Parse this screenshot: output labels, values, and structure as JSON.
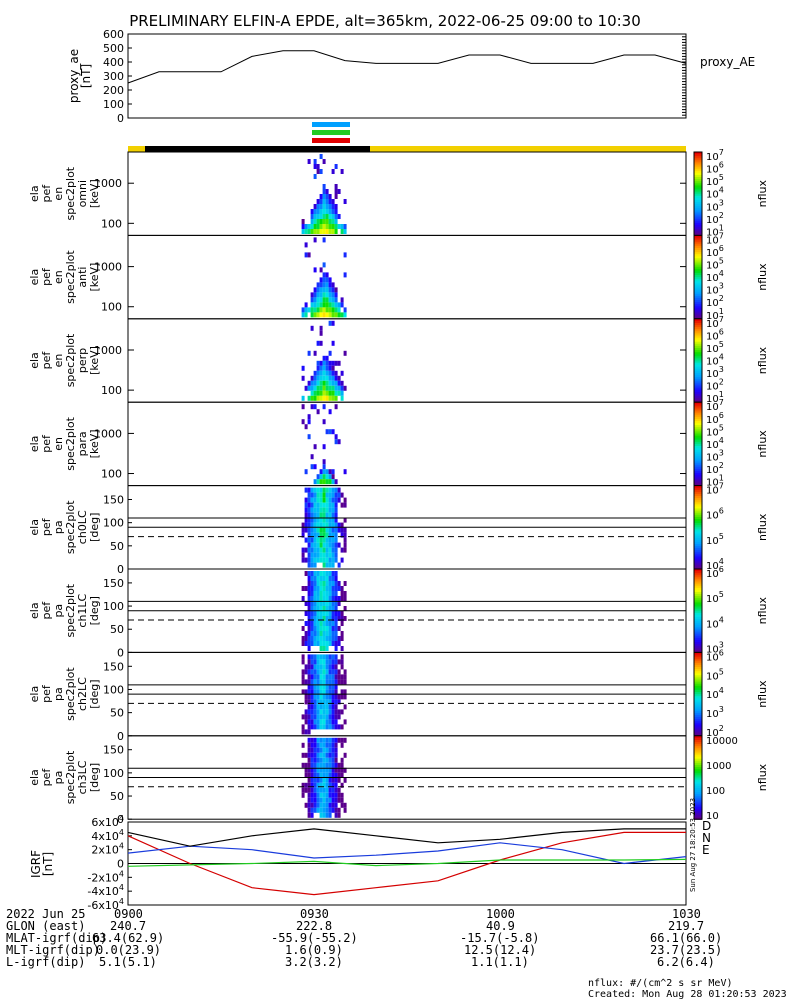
{
  "title": "PRELIMINARY ELFIN-A EPDE, alt=365km, 2022-06-25 09:00 to 10:30",
  "top_panel": {
    "ylabel_lines": [
      "proxy_ae",
      "[nT]"
    ],
    "yticks": [
      "600",
      "500",
      "400",
      "300",
      "200",
      "100",
      "0"
    ],
    "legend": "proxy_AE"
  },
  "spec_panels": [
    {
      "ylabel_lines": [
        "ela",
        "pef",
        "en",
        "spec2plot",
        "omni",
        "[keV]"
      ],
      "yticks": [
        "1000",
        "100"
      ],
      "colorbar": {
        "ticks": [
          "10",
          "10",
          "10",
          "10",
          "10",
          "10",
          "10"
        ],
        "exps": [
          "7",
          "6",
          "5",
          "4",
          "3",
          "2",
          "1"
        ],
        "label": "nflux"
      }
    },
    {
      "ylabel_lines": [
        "ela",
        "pef",
        "en",
        "spec2plot",
        "anti",
        "[keV]"
      ],
      "yticks": [
        "1000",
        "100"
      ],
      "colorbar": {
        "ticks": [
          "10",
          "10",
          "10",
          "10",
          "10",
          "10",
          "10"
        ],
        "exps": [
          "7",
          "6",
          "5",
          "4",
          "3",
          "2",
          "1"
        ],
        "label": "nflux"
      }
    },
    {
      "ylabel_lines": [
        "ela",
        "pef",
        "en",
        "spec2plot",
        "perp",
        "[keV]"
      ],
      "yticks": [
        "1000",
        "100"
      ],
      "colorbar": {
        "ticks": [
          "10",
          "10",
          "10",
          "10",
          "10",
          "10",
          "10"
        ],
        "exps": [
          "7",
          "6",
          "5",
          "4",
          "3",
          "2",
          "1"
        ],
        "label": "nflux"
      }
    },
    {
      "ylabel_lines": [
        "ela",
        "pef",
        "en",
        "spec2plot",
        "para",
        "[keV]"
      ],
      "yticks": [
        "1000",
        "100"
      ],
      "colorbar": {
        "ticks": [
          "10",
          "10",
          "10",
          "10",
          "10",
          "10",
          "10"
        ],
        "exps": [
          "7",
          "6",
          "5",
          "4",
          "3",
          "2",
          "1"
        ],
        "label": "nflux"
      }
    },
    {
      "ylabel_lines": [
        "ela",
        "pef",
        "pa",
        "spec2plot",
        "ch0LC",
        "[deg]"
      ],
      "yticks": [
        "150",
        "100",
        "50",
        "0"
      ],
      "colorbar": {
        "ticks": [
          "10",
          "10",
          "10",
          "10"
        ],
        "exps": [
          "7",
          "6",
          "5",
          "4"
        ],
        "label": "nflux"
      }
    },
    {
      "ylabel_lines": [
        "ela",
        "pef",
        "pa",
        "spec2plot",
        "ch1LC",
        "[deg]"
      ],
      "yticks": [
        "150",
        "100",
        "50",
        "0"
      ],
      "colorbar": {
        "ticks": [
          "10",
          "10",
          "10",
          "10"
        ],
        "exps": [
          "6",
          "5",
          "4",
          "3"
        ],
        "label": "nflux"
      }
    },
    {
      "ylabel_lines": [
        "ela",
        "pef",
        "pa",
        "spec2plot",
        "ch2LC",
        "[deg]"
      ],
      "yticks": [
        "150",
        "100",
        "50",
        "0"
      ],
      "colorbar": {
        "ticks": [
          "10",
          "10",
          "10",
          "10",
          "10"
        ],
        "exps": [
          "6",
          "5",
          "4",
          "3",
          "2"
        ],
        "label": "nflux"
      }
    },
    {
      "ylabel_lines": [
        "ela",
        "pef",
        "pa",
        "spec2plot",
        "ch3LC",
        "[deg]"
      ],
      "yticks": [
        "150",
        "100",
        "50",
        "0"
      ],
      "colorbar": {
        "ticks": [
          "10000",
          "1000",
          "100",
          "10"
        ],
        "exps": [
          "",
          "",
          "",
          ""
        ],
        "label": "nflux"
      }
    }
  ],
  "igrf_panel": {
    "ylabel_lines": [
      "IGRF",
      "[nT]"
    ],
    "yticks": [
      "6x10",
      "4x10",
      "2x10",
      "0",
      "-2x10",
      "-4x10",
      "-6x10"
    ],
    "ytick_exps": [
      "4",
      "4",
      "4",
      "",
      "4",
      "4",
      "4"
    ],
    "legend": [
      "D",
      "N",
      "E"
    ],
    "side_note": "Sun Aug 27 18:20:53 2023"
  },
  "footer": {
    "rows": [
      {
        "label": "2022 Jun 25",
        "values": [
          "0900",
          "0930",
          "1000",
          "1030"
        ]
      },
      {
        "label": "GLON (east)",
        "values": [
          "240.7",
          "222.8",
          "40.9",
          "219.7"
        ]
      },
      {
        "label": "MLAT-igrf(dip)",
        "values": [
          "63.4(62.9)",
          "-55.9(-55.2)",
          "-15.7(-5.8)",
          "66.1(66.0)"
        ]
      },
      {
        "label": "MLT-igrf(dip)",
        "values": [
          "0.0(23.9)",
          "1.6(0.9)",
          "12.5(12.4)",
          "23.7(23.5)"
        ]
      },
      {
        "label": "L-igrf(dip)",
        "values": [
          "5.1(5.1)",
          "3.2(3.2)",
          "1.1(1.1)",
          "6.2(6.4)"
        ]
      }
    ],
    "units_note": "nflux: #/(cm^2 s sr MeV)",
    "created": "Created: Mon Aug 28 01:20:53 2023"
  },
  "colors": {
    "ae_line": "#000000",
    "igrf_d": "#d40000",
    "igrf_n": "#1a3cdc",
    "igrf_e": "#22cc22",
    "igrf_total": "#000000",
    "orbit_sunlit": "#f2d000",
    "orbit_shadow": "#000000",
    "science_bars": [
      "#00a0ff",
      "#22cc22",
      "#e00000"
    ]
  },
  "chart_data": [
    {
      "type": "line",
      "name": "proxy_ae",
      "x_minutes": [
        0,
        5,
        10,
        15,
        20,
        25,
        30,
        35,
        40,
        45,
        50,
        55,
        60,
        65,
        70,
        75,
        80,
        85,
        90
      ],
      "y": [
        250,
        330,
        330,
        330,
        440,
        480,
        480,
        410,
        390,
        390,
        390,
        450,
        450,
        390,
        390,
        390,
        450,
        450,
        390
      ],
      "ylim": [
        0,
        600
      ],
      "xlim": [
        0,
        90
      ]
    },
    {
      "type": "heatmap",
      "name": "energy_spectrograms",
      "panels": [
        "omni",
        "anti",
        "perp",
        "para"
      ],
      "active_window_minutes": [
        28,
        35
      ],
      "peak_minute": 31.5,
      "ylim_keV": [
        50,
        6000
      ],
      "log_y": true
    },
    {
      "type": "heatmap",
      "name": "pitch_angle_spectrograms",
      "panels": [
        "ch0LC",
        "ch1LC",
        "ch2LC",
        "ch3LC"
      ],
      "active_window_minutes": [
        28,
        35
      ],
      "ylim_deg": [
        0,
        180
      ],
      "reference_lines_deg": [
        110,
        90,
        70
      ]
    },
    {
      "type": "line",
      "name": "IGRF",
      "x_minutes": [
        0,
        10,
        20,
        30,
        40,
        50,
        60,
        70,
        80,
        90
      ],
      "ylim": [
        -60000,
        60000
      ],
      "series": [
        {
          "name": "D",
          "values": [
            40000,
            0,
            -35000,
            -45000,
            -35000,
            -25000,
            5000,
            30000,
            45000,
            45000
          ]
        },
        {
          "name": "N",
          "values": [
            15000,
            25000,
            20000,
            8000,
            12000,
            18000,
            30000,
            20000,
            0,
            10000
          ]
        },
        {
          "name": "E",
          "values": [
            -4000,
            -2000,
            0,
            3000,
            -3000,
            0,
            5000,
            5000,
            5000,
            6000
          ]
        },
        {
          "values": [
            45000,
            25000,
            40000,
            50000,
            40000,
            30000,
            35000,
            45000,
            50000,
            50000
          ]
        }
      ]
    }
  ]
}
